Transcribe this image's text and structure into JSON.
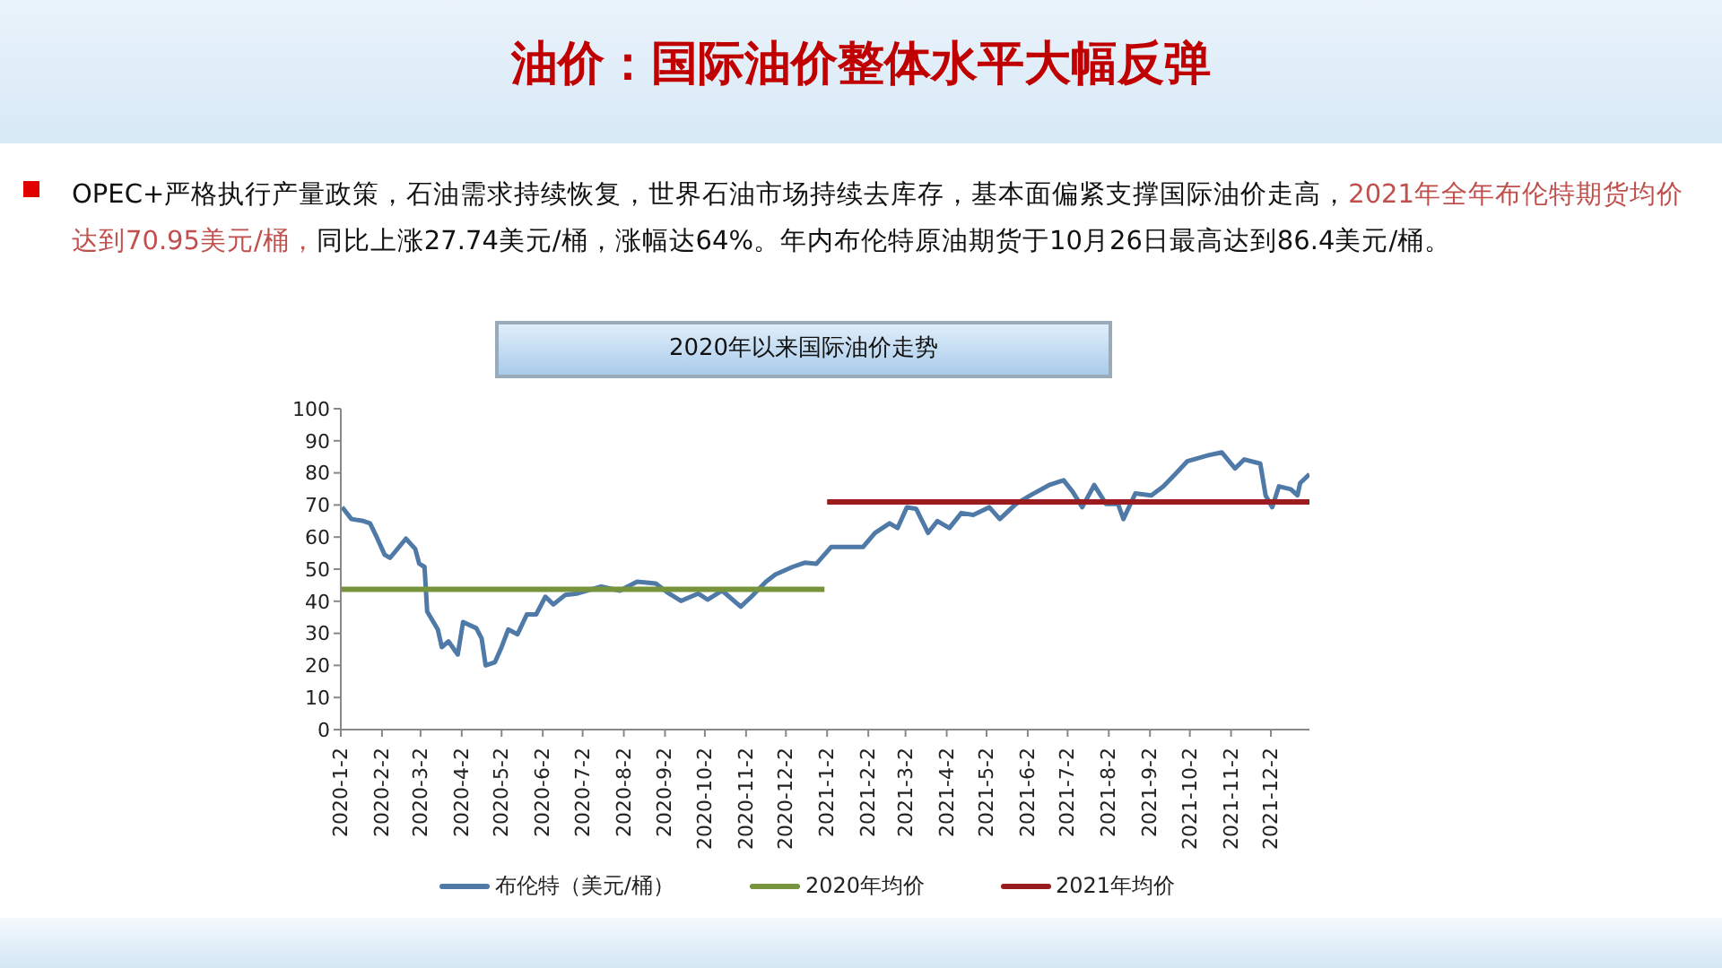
{
  "chart_data": {
    "type": "line",
    "title": "油价：国际油价整体水平大幅反弹",
    "subtitle": "2020年以来国际油价走势",
    "annotations": [
      "OPEC+严格执行产量政策，石油需求持续恢复，世界石油市场持续去库存，基本面偏紧支撑国际油价走高，",
      "2021年全年布伦特期货均价达到70.95美元/桶，",
      "同比上涨27.74美元/桶，涨幅达64%。年内布伦特原油期货于10月26日最高达到86.4美元/桶。"
    ],
    "xlim": [
      "2020-01-02",
      "2021-12-31"
    ],
    "xticks": [
      {
        "value": "2020-01-02",
        "label": "2020-1-2"
      },
      {
        "value": "2020-02-02",
        "label": "2020-2-2"
      },
      {
        "value": "2020-03-02",
        "label": "2020-3-2"
      },
      {
        "value": "2020-04-02",
        "label": "2020-4-2"
      },
      {
        "value": "2020-05-02",
        "label": "2020-5-2"
      },
      {
        "value": "2020-06-02",
        "label": "2020-6-2"
      },
      {
        "value": "2020-07-02",
        "label": "2020-7-2"
      },
      {
        "value": "2020-08-02",
        "label": "2020-8-2"
      },
      {
        "value": "2020-09-02",
        "label": "2020-9-2"
      },
      {
        "value": "2020-10-02",
        "label": "2020-10-2"
      },
      {
        "value": "2020-11-02",
        "label": "2020-11-2"
      },
      {
        "value": "2020-12-02",
        "label": "2020-12-2"
      },
      {
        "value": "2021-01-02",
        "label": "2021-1-2"
      },
      {
        "value": "2021-02-02",
        "label": "2021-2-2"
      },
      {
        "value": "2021-03-02",
        "label": "2021-3-2"
      },
      {
        "value": "2021-04-02",
        "label": "2021-4-2"
      },
      {
        "value": "2021-05-02",
        "label": "2021-5-2"
      },
      {
        "value": "2021-06-02",
        "label": "2021-6-2"
      },
      {
        "value": "2021-07-02",
        "label": "2021-7-2"
      },
      {
        "value": "2021-08-02",
        "label": "2021-8-2"
      },
      {
        "value": "2021-09-02",
        "label": "2021-9-2"
      },
      {
        "value": "2021-10-02",
        "label": "2021-10-2"
      },
      {
        "value": "2021-11-02",
        "label": "2021-11-2"
      },
      {
        "value": "2021-12-02",
        "label": "2021-12-2"
      }
    ],
    "ylim": [
      0,
      100
    ],
    "yticks": [
      0,
      10,
      20,
      30,
      40,
      50,
      60,
      70,
      80,
      90,
      100
    ],
    "grid": false,
    "legend": "bottom",
    "marker": "none",
    "line_style": "solid",
    "series": [
      {
        "name": "布伦特（美元/桶）",
        "color": "#4f7aa8",
        "x": [
          "2020-01-03",
          "2020-01-10",
          "2020-01-19",
          "2020-01-24",
          "2020-01-29",
          "2020-02-04",
          "2020-02-08",
          "2020-02-20",
          "2020-02-27",
          "2020-03-01",
          "2020-03-05",
          "2020-03-07",
          "2020-03-15",
          "2020-03-18",
          "2020-03-23",
          "2020-03-30",
          "2020-04-03",
          "2020-04-13",
          "2020-04-17",
          "2020-04-20",
          "2020-04-27",
          "2020-05-02",
          "2020-05-07",
          "2020-05-14",
          "2020-05-21",
          "2020-05-28",
          "2020-06-04",
          "2020-06-10",
          "2020-06-19",
          "2020-06-28",
          "2020-07-16",
          "2020-07-30",
          "2020-08-12",
          "2020-08-26",
          "2020-09-05",
          "2020-09-14",
          "2020-09-27",
          "2020-10-04",
          "2020-10-15",
          "2020-10-29",
          "2020-11-06",
          "2020-11-17",
          "2020-11-24",
          "2020-12-07",
          "2020-12-16",
          "2020-12-25",
          "2021-01-05",
          "2021-01-29",
          "2021-02-07",
          "2021-02-18",
          "2021-02-24",
          "2021-03-03",
          "2021-03-10",
          "2021-03-19",
          "2021-03-26",
          "2021-04-04",
          "2021-04-13",
          "2021-04-22",
          "2021-05-04",
          "2021-05-12",
          "2021-05-24",
          "2021-06-04",
          "2021-06-18",
          "2021-06-29",
          "2021-07-06",
          "2021-07-13",
          "2021-07-22",
          "2021-07-31",
          "2021-08-09",
          "2021-08-13",
          "2021-08-22",
          "2021-09-03",
          "2021-09-12",
          "2021-09-21",
          "2021-09-30",
          "2021-10-16",
          "2021-10-26",
          "2021-11-05",
          "2021-11-12",
          "2021-11-24",
          "2021-11-28",
          "2021-12-03",
          "2021-12-08",
          "2021-12-17",
          "2021-12-22",
          "2021-12-24",
          "2021-12-31"
        ],
        "values": [
          69.3,
          65.6,
          65,
          64.3,
          60,
          54.5,
          53.5,
          59.5,
          56.3,
          51.7,
          50.7,
          36.8,
          31.2,
          25.7,
          27.5,
          23.4,
          33.5,
          31.6,
          28.4,
          20,
          21,
          25.7,
          31.2,
          29.7,
          35.9,
          35.9,
          41.4,
          39,
          42,
          42.4,
          44.6,
          43.3,
          46.1,
          45.5,
          42.4,
          40.1,
          42.4,
          40.5,
          43.3,
          38.3,
          41.4,
          46.1,
          48.3,
          50.7,
          52,
          51.7,
          56.9,
          56.9,
          61.3,
          64.3,
          62.8,
          69.3,
          68.8,
          61.3,
          65,
          62.8,
          67.5,
          66.9,
          69.3,
          65.6,
          70.3,
          73,
          76.2,
          77.7,
          74,
          69.3,
          76.2,
          70.3,
          70.3,
          65.6,
          73.6,
          73,
          75.8,
          79.6,
          83.6,
          85.5,
          86.4,
          81.4,
          84.2,
          82.9,
          73,
          69.3,
          75.8,
          74.9,
          73,
          76.8,
          79.6
        ]
      },
      {
        "name": "2020年均价",
        "color": "#77933c",
        "x": [
          "2020-01-02",
          "2020-12-31"
        ],
        "values": [
          43.7,
          43.7
        ]
      },
      {
        "name": "2021年均价",
        "color": "#9b1c1f",
        "x": [
          "2021-01-02",
          "2021-12-31"
        ],
        "values": [
          70.95,
          70.95
        ]
      }
    ]
  }
}
